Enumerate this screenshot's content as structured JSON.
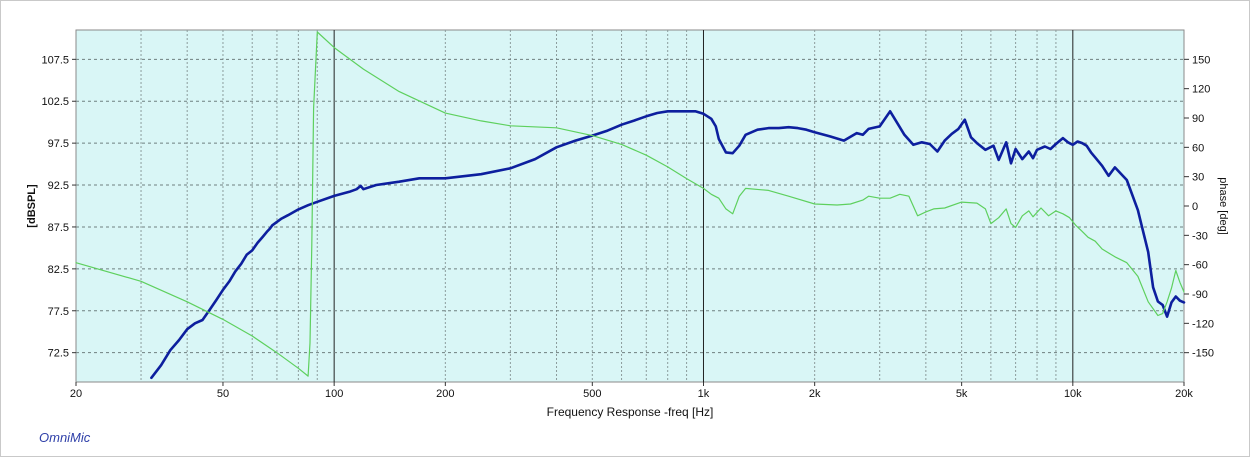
{
  "chart_data": {
    "type": "line",
    "title": "",
    "xlabel": "Frequency Response -freq [Hz]",
    "ylabel": "[dBSPL]",
    "y2label": "phase [deg]",
    "xscale": "log",
    "xlim": [
      20,
      20000
    ],
    "ylim": [
      69,
      111
    ],
    "y2lim": [
      -180,
      180
    ],
    "xticks": [
      {
        "v": 20,
        "label": "20"
      },
      {
        "v": 50,
        "label": "50"
      },
      {
        "v": 100,
        "label": "100"
      },
      {
        "v": 200,
        "label": "200"
      },
      {
        "v": 500,
        "label": "500"
      },
      {
        "v": 1000,
        "label": "1k"
      },
      {
        "v": 2000,
        "label": "2k"
      },
      {
        "v": 5000,
        "label": "5k"
      },
      {
        "v": 10000,
        "label": "10k"
      },
      {
        "v": 20000,
        "label": "20k"
      }
    ],
    "yticks": [
      {
        "v": 72.5,
        "label": "72.5"
      },
      {
        "v": 77.5,
        "label": "77.5"
      },
      {
        "v": 82.5,
        "label": "82.5"
      },
      {
        "v": 87.5,
        "label": "87.5"
      },
      {
        "v": 92.5,
        "label": "92.5"
      },
      {
        "v": 97.5,
        "label": "97.5"
      },
      {
        "v": 102.5,
        "label": "102.5"
      },
      {
        "v": 107.5,
        "label": "107.5"
      }
    ],
    "y2ticks": [
      {
        "v": 150,
        "label": "150"
      },
      {
        "v": 120,
        "label": "120"
      },
      {
        "v": 90,
        "label": "90"
      },
      {
        "v": 60,
        "label": "60"
      },
      {
        "v": 30,
        "label": "30"
      },
      {
        "v": 0,
        "label": "0"
      },
      {
        "v": -30,
        "label": "-30"
      },
      {
        "v": -60,
        "label": "-60"
      },
      {
        "v": -90,
        "label": "-90"
      },
      {
        "v": -120,
        "label": "-120"
      },
      {
        "v": -150,
        "label": "-150"
      }
    ],
    "grid": true,
    "series": [
      {
        "axis": "left",
        "color": "#0d1f9e",
        "x": [
          32,
          34,
          36,
          38,
          40,
          42,
          44,
          46,
          48,
          50,
          52,
          54,
          56,
          58,
          60,
          62,
          64,
          66,
          67,
          68,
          70,
          72,
          75,
          80,
          85,
          90,
          100,
          110,
          115,
          118,
          120,
          130,
          150,
          170,
          200,
          250,
          300,
          350,
          400,
          450,
          500,
          550,
          600,
          650,
          700,
          750,
          800,
          900,
          950,
          1000,
          1050,
          1080,
          1100,
          1150,
          1200,
          1250,
          1300,
          1400,
          1500,
          1600,
          1700,
          1800,
          1900,
          2000,
          2200,
          2400,
          2600,
          2700,
          2800,
          3000,
          3200,
          3400,
          3500,
          3700,
          3900,
          4100,
          4300,
          4500,
          4700,
          4900,
          5100,
          5300,
          5500,
          5800,
          6100,
          6300,
          6600,
          6800,
          7000,
          7300,
          7600,
          7800,
          8000,
          8400,
          8700,
          9000,
          9400,
          9700,
          10000,
          10300,
          10600,
          10900,
          11200,
          11500,
          12000,
          12500,
          13000,
          14000,
          15000,
          16000,
          16500,
          17000,
          17500,
          18000,
          18500,
          19000,
          19500,
          20000
        ],
        "y": [
          69.5,
          71,
          72.8,
          74,
          75.3,
          76,
          76.4,
          77.6,
          78.8,
          80,
          81,
          82.2,
          83.1,
          84.2,
          84.7,
          85.6,
          86.3,
          87,
          87.3,
          87.7,
          88.1,
          88.5,
          88.9,
          89.6,
          90.1,
          90.5,
          91.2,
          91.7,
          92,
          92.4,
          92,
          92.5,
          92.9,
          93.3,
          93.3,
          93.8,
          94.5,
          95.6,
          97,
          97.8,
          98.4,
          99,
          99.7,
          100.2,
          100.7,
          101.1,
          101.3,
          101.3,
          101.3,
          101,
          100.4,
          99.5,
          98,
          96.4,
          96.3,
          97.2,
          98.5,
          99.1,
          99.3,
          99.3,
          99.4,
          99.3,
          99.1,
          98.8,
          98.3,
          97.8,
          98.7,
          98.5,
          99.2,
          99.5,
          101.3,
          99.4,
          98.5,
          97.3,
          97.6,
          97.4,
          96.5,
          97.8,
          98.6,
          99.2,
          100.3,
          98.2,
          97.5,
          96.7,
          97.2,
          95.5,
          97.6,
          95.1,
          96.8,
          95.6,
          96.5,
          95.7,
          96.7,
          97.1,
          96.8,
          97.4,
          98.1,
          97.6,
          97.3,
          97.7,
          97.5,
          97.2,
          96.4,
          95.8,
          94.8,
          93.6,
          94.6,
          93.1,
          89.5,
          84.5,
          80.3,
          78.6,
          78.2,
          76.8,
          78.5,
          79.2,
          78.7,
          78.5
        ],
        "name": ""
      },
      {
        "axis": "right",
        "color": "#5ed05e",
        "x": [
          20,
          30,
          40,
          50,
          60,
          70,
          80,
          85,
          86,
          87,
          88,
          90,
          100,
          120,
          150,
          200,
          250,
          300,
          400,
          500,
          600,
          700,
          800,
          900,
          1000,
          1050,
          1100,
          1150,
          1200,
          1250,
          1300,
          1500,
          1700,
          2000,
          2300,
          2500,
          2700,
          2800,
          3000,
          3200,
          3400,
          3600,
          3800,
          4000,
          4200,
          4500,
          5000,
          5500,
          5800,
          6000,
          6300,
          6600,
          6800,
          7000,
          7300,
          7600,
          7800,
          8200,
          8600,
          9000,
          9400,
          9800,
          10200,
          10600,
          11000,
          11500,
          12000,
          13000,
          14000,
          15000,
          16000,
          17000,
          17500,
          18000,
          18500,
          19000,
          19500,
          20000
        ],
        "y": [
          -58,
          -77,
          -98,
          -116,
          -133,
          -150,
          -166,
          -174,
          -140,
          -40,
          100,
          178,
          162,
          140,
          117,
          95,
          87,
          82,
          80,
          72,
          63,
          52,
          40,
          28,
          18,
          12,
          8,
          -3,
          -8,
          10,
          18,
          16,
          10,
          2,
          1,
          2,
          6,
          10,
          8,
          8,
          12,
          10,
          -10,
          -6,
          -3,
          -2,
          4,
          3,
          -3,
          -18,
          -12,
          -3,
          -18,
          -22,
          -10,
          -5,
          -11,
          -2,
          -10,
          -5,
          -8,
          -12,
          -20,
          -26,
          -32,
          -36,
          -44,
          -52,
          -58,
          -72,
          -98,
          -112,
          -110,
          -98,
          -84,
          -66,
          -78,
          -88
        ]
      }
    ]
  },
  "footer": {
    "brand": "OmniMic"
  }
}
